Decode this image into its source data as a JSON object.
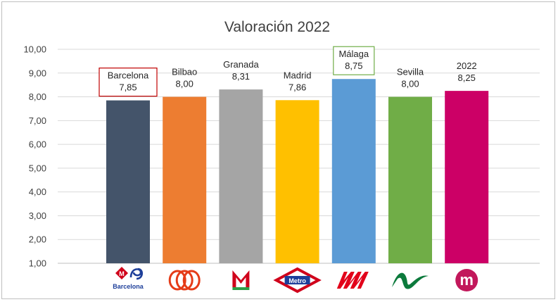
{
  "chart_data": {
    "type": "bar",
    "title": "Valoración 2022",
    "categories": [
      "Barcelona",
      "Bilbao",
      "Granada",
      "Madrid",
      "Málaga",
      "Sevilla",
      "2022"
    ],
    "values": [
      7.85,
      8.0,
      8.31,
      7.86,
      8.75,
      8.0,
      8.25
    ],
    "value_labels": [
      "7,85",
      "8,00",
      "8,31",
      "7,86",
      "8,75",
      "8,00",
      "8,25"
    ],
    "colors": [
      "#44546a",
      "#ed7d31",
      "#a5a5a5",
      "#ffc000",
      "#5b9bd5",
      "#70ad47",
      "#cc0066"
    ],
    "ylim": [
      1,
      10
    ],
    "yticks": [
      "1,00",
      "2,00",
      "3,00",
      "4,00",
      "5,00",
      "6,00",
      "7,00",
      "8,00",
      "9,00",
      "10,00"
    ],
    "ytick_values": [
      1,
      2,
      3,
      4,
      5,
      6,
      7,
      8,
      9,
      10
    ],
    "grid": true,
    "highlighted_labels": [
      {
        "category": "Barcelona",
        "border_color": "#c00000"
      },
      {
        "category": "Málaga",
        "border_color": "#70ad47"
      }
    ],
    "logos": [
      {
        "category": "Barcelona",
        "icon": "barcelona-metro-logo-icon",
        "text": "Barcelona"
      },
      {
        "category": "Bilbao",
        "icon": "bilbao-metro-logo-icon"
      },
      {
        "category": "Granada",
        "icon": "granada-metro-logo-icon"
      },
      {
        "category": "Madrid",
        "icon": "madrid-metro-logo-icon",
        "text": "Metro"
      },
      {
        "category": "Málaga",
        "icon": "malaga-metro-logo-icon"
      },
      {
        "category": "Sevilla",
        "icon": "sevilla-metro-logo-icon"
      },
      {
        "category": "2022",
        "icon": "2022-logo-icon",
        "text": "m"
      }
    ]
  }
}
